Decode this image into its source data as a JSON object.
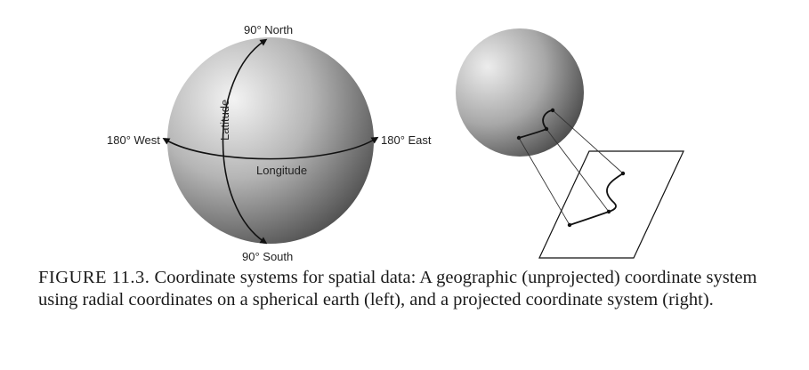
{
  "left_diagram": {
    "north_label": "90° North",
    "south_label": "90° South",
    "west_label": "180° West",
    "east_label": "180° East",
    "latitude_label": "Latitude",
    "longitude_label": "Longitude"
  },
  "caption": {
    "figure_label": "FIGURE 11.3.",
    "text": "Coordinate systems for spatial data: A geographic (unprojected) coordinate system using radial coordinates on a spherical earth (left), and a projected coordinate system (right)."
  }
}
